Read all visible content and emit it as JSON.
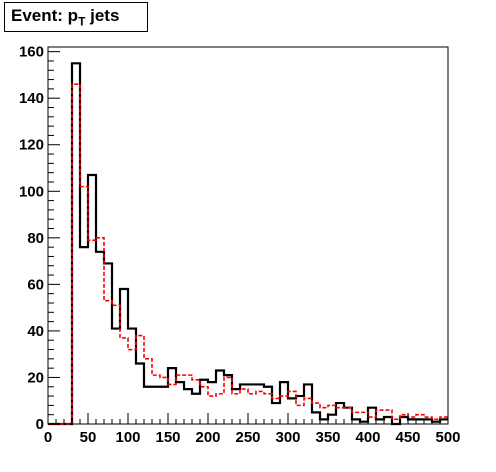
{
  "title": {
    "main": "Event: p",
    "sub": "T",
    "suffix": " jets"
  },
  "chart_data": {
    "type": "histogram",
    "title": "Event: pT jets",
    "xlim": [
      0,
      500
    ],
    "ylim": [
      0,
      162
    ],
    "bin_width": 10,
    "x_ticks": [
      0,
      50,
      100,
      150,
      200,
      250,
      300,
      350,
      400,
      450,
      500
    ],
    "y_ticks": [
      0,
      20,
      40,
      60,
      80,
      100,
      120,
      140,
      160
    ],
    "grid": false,
    "series": [
      {
        "style": "solid",
        "color": "#000000",
        "values": [
          0,
          0,
          0,
          155,
          76,
          107,
          74,
          69,
          41,
          58,
          41,
          26,
          16,
          16,
          16,
          24,
          18,
          15,
          13,
          19,
          18,
          23,
          21,
          15,
          17,
          17,
          17,
          16,
          9,
          18,
          11,
          12,
          17,
          5,
          2,
          4,
          9,
          7,
          2,
          1,
          7,
          2,
          3,
          0,
          3,
          2,
          2,
          2,
          1,
          2
        ]
      },
      {
        "style": "dashed",
        "color": "#ff0000",
        "values": [
          0,
          0,
          0,
          146,
          102,
          79,
          80,
          53,
          51,
          37,
          32,
          38,
          28,
          21,
          20,
          17,
          21,
          21,
          19,
          16,
          12,
          13,
          20,
          13,
          15,
          13,
          14,
          13,
          11,
          12,
          14,
          8,
          11,
          9,
          7,
          8,
          7,
          7,
          5,
          5,
          3,
          6,
          6,
          2,
          4,
          3,
          4,
          3,
          2,
          3
        ]
      }
    ]
  }
}
